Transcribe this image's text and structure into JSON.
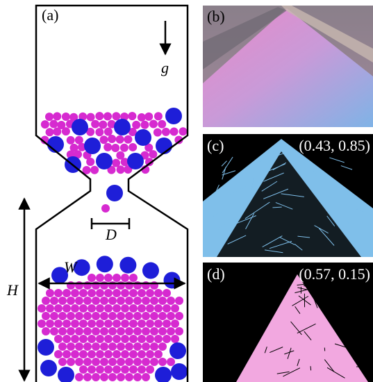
{
  "panel_a": {
    "label": "(a)",
    "gravity": "g",
    "opening": "D",
    "width": "W",
    "height": "H"
  },
  "panel_b": {
    "label": "(b)"
  },
  "panel_c": {
    "label": "(c)",
    "coordinates": "(0.43, 0.85)"
  },
  "panel_d": {
    "label": "(d)",
    "coordinates": "(0.57, 0.15)"
  }
}
